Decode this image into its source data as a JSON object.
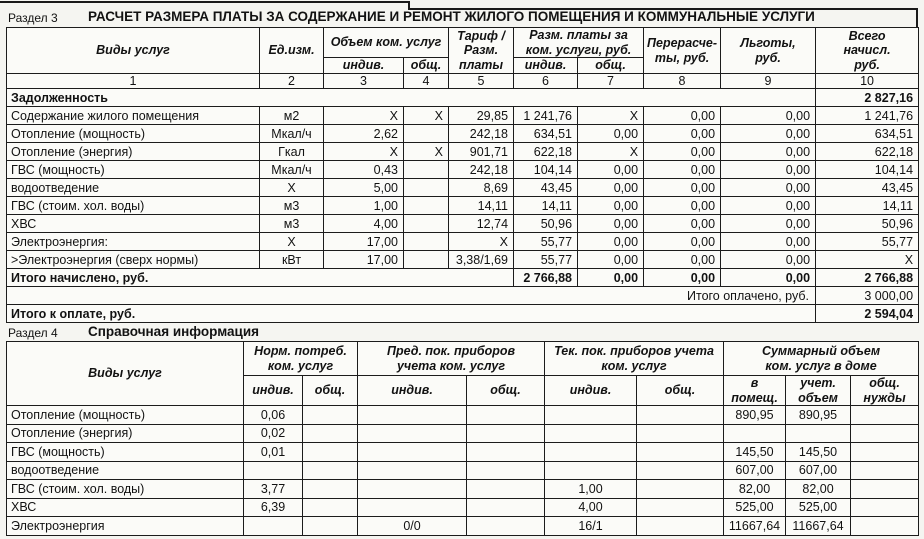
{
  "colors": {
    "ink": "#1a1a1a",
    "paper": "#f5f5f1"
  },
  "section3": {
    "label": "Раздел 3",
    "title": "РАСЧЕТ РАЗМЕРА ПЛАТЫ ЗА СОДЕРЖАНИЕ И РЕМОНТ ЖИЛОГО ПОМЕЩЕНИЯ И КОММУНАЛЬНЫЕ УСЛУГИ",
    "table": {
      "head": [
        [
          {
            "t": "Виды услуг",
            "c": "h",
            "r": 2
          },
          {
            "t": "Ед.изм.",
            "c": "h",
            "r": 2
          },
          {
            "t": "Объем ком. услуг",
            "c": "h",
            "s": 2
          },
          {
            "t": "Тариф /\nРазм.\nплаты",
            "c": "h",
            "r": 2
          },
          {
            "t": "Разм. платы за\nком. услуги, руб.",
            "c": "h",
            "s": 2
          },
          {
            "t": "Перерасче-\nты, руб.",
            "c": "h",
            "r": 2
          },
          {
            "t": "Льготы,\nруб.",
            "c": "h",
            "r": 2
          },
          {
            "t": "Всего\nначисл.\nруб.",
            "c": "h",
            "r": 2
          }
        ],
        [
          {
            "t": "индив.",
            "c": "h"
          },
          {
            "t": "общ.",
            "c": "h"
          },
          {
            "t": "индив.",
            "c": "h"
          },
          {
            "t": "общ.",
            "c": "h"
          }
        ],
        [
          {
            "t": "1",
            "c": "n"
          },
          {
            "t": "2",
            "c": "n"
          },
          {
            "t": "3",
            "c": "n"
          },
          {
            "t": "4",
            "c": "n"
          },
          {
            "t": "5",
            "c": "n"
          },
          {
            "t": "6",
            "c": "n"
          },
          {
            "t": "7",
            "c": "n"
          },
          {
            "t": "8",
            "c": "n"
          },
          {
            "t": "9",
            "c": "n"
          },
          {
            "t": "10",
            "c": "n"
          }
        ]
      ],
      "rows": [
        [
          {
            "t": "Задолженность",
            "c": "l b",
            "s": 9
          },
          {
            "t": "2 827,16",
            "c": "v b"
          }
        ],
        [
          {
            "t": "Содержание жилого помещения",
            "c": "l"
          },
          {
            "t": "м2",
            "c": "n"
          },
          {
            "t": "X",
            "c": "v"
          },
          {
            "t": "X",
            "c": "v"
          },
          {
            "t": "29,85",
            "c": "v"
          },
          {
            "t": "1 241,76",
            "c": "v"
          },
          {
            "t": "X",
            "c": "v"
          },
          {
            "t": "0,00",
            "c": "v"
          },
          {
            "t": "0,00",
            "c": "v"
          },
          {
            "t": "1 241,76",
            "c": "v"
          }
        ],
        [
          {
            "t": "Отопление (мощность)",
            "c": "l"
          },
          {
            "t": "Мкал/ч",
            "c": "n"
          },
          {
            "t": "2,62",
            "c": "v"
          },
          {
            "t": "",
            "c": "v"
          },
          {
            "t": "242,18",
            "c": "v"
          },
          {
            "t": "634,51",
            "c": "v"
          },
          {
            "t": "0,00",
            "c": "v"
          },
          {
            "t": "0,00",
            "c": "v"
          },
          {
            "t": "0,00",
            "c": "v"
          },
          {
            "t": "634,51",
            "c": "v"
          }
        ],
        [
          {
            "t": "Отопление (энергия)",
            "c": "l"
          },
          {
            "t": "Гкал",
            "c": "n"
          },
          {
            "t": "X",
            "c": "v"
          },
          {
            "t": "X",
            "c": "v"
          },
          {
            "t": "901,71",
            "c": "v"
          },
          {
            "t": "622,18",
            "c": "v"
          },
          {
            "t": "X",
            "c": "v"
          },
          {
            "t": "0,00",
            "c": "v"
          },
          {
            "t": "0,00",
            "c": "v"
          },
          {
            "t": "622,18",
            "c": "v"
          }
        ],
        [
          {
            "t": "ГВС (мощность)",
            "c": "l"
          },
          {
            "t": "Мкал/ч",
            "c": "n"
          },
          {
            "t": "0,43",
            "c": "v"
          },
          {
            "t": "",
            "c": "v"
          },
          {
            "t": "242,18",
            "c": "v"
          },
          {
            "t": "104,14",
            "c": "v"
          },
          {
            "t": "0,00",
            "c": "v"
          },
          {
            "t": "0,00",
            "c": "v"
          },
          {
            "t": "0,00",
            "c": "v"
          },
          {
            "t": "104,14",
            "c": "v"
          }
        ],
        [
          {
            "t": "водоотведение",
            "c": "l"
          },
          {
            "t": "X",
            "c": "n"
          },
          {
            "t": "5,00",
            "c": "v"
          },
          {
            "t": "",
            "c": "v"
          },
          {
            "t": "8,69",
            "c": "v"
          },
          {
            "t": "43,45",
            "c": "v"
          },
          {
            "t": "0,00",
            "c": "v"
          },
          {
            "t": "0,00",
            "c": "v"
          },
          {
            "t": "0,00",
            "c": "v"
          },
          {
            "t": "43,45",
            "c": "v"
          }
        ],
        [
          {
            "t": "ГВС (стоим. хол. воды)",
            "c": "l"
          },
          {
            "t": "м3",
            "c": "n"
          },
          {
            "t": "1,00",
            "c": "v"
          },
          {
            "t": "",
            "c": "v"
          },
          {
            "t": "14,11",
            "c": "v"
          },
          {
            "t": "14,11",
            "c": "v"
          },
          {
            "t": "0,00",
            "c": "v"
          },
          {
            "t": "0,00",
            "c": "v"
          },
          {
            "t": "0,00",
            "c": "v"
          },
          {
            "t": "14,11",
            "c": "v"
          }
        ],
        [
          {
            "t": "ХВС",
            "c": "l"
          },
          {
            "t": "м3",
            "c": "n"
          },
          {
            "t": "4,00",
            "c": "v"
          },
          {
            "t": "",
            "c": "v"
          },
          {
            "t": "12,74",
            "c": "v"
          },
          {
            "t": "50,96",
            "c": "v"
          },
          {
            "t": "0,00",
            "c": "v"
          },
          {
            "t": "0,00",
            "c": "v"
          },
          {
            "t": "0,00",
            "c": "v"
          },
          {
            "t": "50,96",
            "c": "v"
          }
        ],
        [
          {
            "t": "Электроэнергия:",
            "c": "l"
          },
          {
            "t": "X",
            "c": "n"
          },
          {
            "t": "17,00",
            "c": "v"
          },
          {
            "t": "",
            "c": "v"
          },
          {
            "t": "X",
            "c": "v"
          },
          {
            "t": "55,77",
            "c": "v"
          },
          {
            "t": "0,00",
            "c": "v"
          },
          {
            "t": "0,00",
            "c": "v"
          },
          {
            "t": "0,00",
            "c": "v"
          },
          {
            "t": "55,77",
            "c": "v"
          }
        ],
        [
          {
            "t": ">Электроэнергия (сверх нормы)",
            "c": "l"
          },
          {
            "t": "кВт",
            "c": "n"
          },
          {
            "t": "17,00",
            "c": "v"
          },
          {
            "t": "",
            "c": "v"
          },
          {
            "t": "3,38/1,69",
            "c": "v"
          },
          {
            "t": "55,77",
            "c": "v"
          },
          {
            "t": "0,00",
            "c": "v"
          },
          {
            "t": "0,00",
            "c": "v"
          },
          {
            "t": "0,00",
            "c": "v"
          },
          {
            "t": "X",
            "c": "v"
          }
        ],
        [
          {
            "t": "Итого начислено, руб.",
            "c": "l b",
            "s": 5
          },
          {
            "t": "2 766,88",
            "c": "v b"
          },
          {
            "t": "0,00",
            "c": "v b"
          },
          {
            "t": "0,00",
            "c": "v b"
          },
          {
            "t": "0,00",
            "c": "v b"
          },
          {
            "t": "2 766,88",
            "c": "v b"
          }
        ],
        [
          {
            "t": "Итого оплачено, руб.",
            "c": "r",
            "s": 9
          },
          {
            "t": "3 000,00",
            "c": "v"
          }
        ],
        [
          {
            "t": "Итого к оплате, руб.",
            "c": "l b",
            "s": 9
          },
          {
            "t": "2 594,04",
            "c": "v b"
          }
        ]
      ]
    }
  },
  "section4": {
    "label": "Раздел 4",
    "title": "Справочная информация",
    "table": {
      "head": [
        [
          {
            "t": "Виды услуг",
            "c": "h",
            "r": 2
          },
          {
            "t": "Норм. потреб.\nком. услуг",
            "c": "h",
            "s": 2
          },
          {
            "t": "Пред. пок. приборов\nучета ком. услуг",
            "c": "h",
            "s": 2
          },
          {
            "t": "Тек. пок. приборов учета\nком. услуг",
            "c": "h",
            "s": 2
          },
          {
            "t": "Суммарный объем\nком. услуг в доме",
            "c": "h",
            "s": 3
          }
        ],
        [
          {
            "t": "индив.",
            "c": "h"
          },
          {
            "t": "общ.",
            "c": "h"
          },
          {
            "t": "индив.",
            "c": "h"
          },
          {
            "t": "общ.",
            "c": "h"
          },
          {
            "t": "индив.",
            "c": "h"
          },
          {
            "t": "общ.",
            "c": "h"
          },
          {
            "t": "в\nпомещ.",
            "c": "h"
          },
          {
            "t": "учет.\nобъем",
            "c": "h"
          },
          {
            "t": "общ.\nнужды",
            "c": "h"
          }
        ]
      ],
      "rows": [
        [
          {
            "t": "Отопление (мощность)",
            "c": "l"
          },
          {
            "t": "0,06",
            "c": "n"
          },
          {
            "t": "",
            "c": "n"
          },
          {
            "t": "",
            "c": "n"
          },
          {
            "t": "",
            "c": "n"
          },
          {
            "t": "",
            "c": "n"
          },
          {
            "t": "",
            "c": "n"
          },
          {
            "t": "890,95",
            "c": "n"
          },
          {
            "t": "890,95",
            "c": "n"
          },
          {
            "t": "",
            "c": "n"
          }
        ],
        [
          {
            "t": "Отопление (энергия)",
            "c": "l"
          },
          {
            "t": "0,02",
            "c": "n"
          },
          {
            "t": "",
            "c": "n"
          },
          {
            "t": "",
            "c": "n"
          },
          {
            "t": "",
            "c": "n"
          },
          {
            "t": "",
            "c": "n"
          },
          {
            "t": "",
            "c": "n"
          },
          {
            "t": "",
            "c": "n"
          },
          {
            "t": "",
            "c": "n"
          },
          {
            "t": "",
            "c": "n"
          }
        ],
        [
          {
            "t": "ГВС (мощность)",
            "c": "l"
          },
          {
            "t": "0,01",
            "c": "n"
          },
          {
            "t": "",
            "c": "n"
          },
          {
            "t": "",
            "c": "n"
          },
          {
            "t": "",
            "c": "n"
          },
          {
            "t": "",
            "c": "n"
          },
          {
            "t": "",
            "c": "n"
          },
          {
            "t": "145,50",
            "c": "n"
          },
          {
            "t": "145,50",
            "c": "n"
          },
          {
            "t": "",
            "c": "n"
          }
        ],
        [
          {
            "t": "водоотведение",
            "c": "l"
          },
          {
            "t": "",
            "c": "n"
          },
          {
            "t": "",
            "c": "n"
          },
          {
            "t": "",
            "c": "n"
          },
          {
            "t": "",
            "c": "n"
          },
          {
            "t": "",
            "c": "n"
          },
          {
            "t": "",
            "c": "n"
          },
          {
            "t": "607,00",
            "c": "n"
          },
          {
            "t": "607,00",
            "c": "n"
          },
          {
            "t": "",
            "c": "n"
          }
        ],
        [
          {
            "t": "ГВС (стоим. хол. воды)",
            "c": "l"
          },
          {
            "t": "3,77",
            "c": "n"
          },
          {
            "t": "",
            "c": "n"
          },
          {
            "t": "",
            "c": "n"
          },
          {
            "t": "",
            "c": "n"
          },
          {
            "t": "1,00",
            "c": "n"
          },
          {
            "t": "",
            "c": "n"
          },
          {
            "t": "82,00",
            "c": "n"
          },
          {
            "t": "82,00",
            "c": "n"
          },
          {
            "t": "",
            "c": "n"
          }
        ],
        [
          {
            "t": "ХВС",
            "c": "l"
          },
          {
            "t": "6,39",
            "c": "n"
          },
          {
            "t": "",
            "c": "n"
          },
          {
            "t": "",
            "c": "n"
          },
          {
            "t": "",
            "c": "n"
          },
          {
            "t": "4,00",
            "c": "n"
          },
          {
            "t": "",
            "c": "n"
          },
          {
            "t": "525,00",
            "c": "n"
          },
          {
            "t": "525,00",
            "c": "n"
          },
          {
            "t": "",
            "c": "n"
          }
        ],
        [
          {
            "t": "Электроэнергия",
            "c": "l"
          },
          {
            "t": "",
            "c": "n"
          },
          {
            "t": "",
            "c": "n"
          },
          {
            "t": "0/0",
            "c": "n"
          },
          {
            "t": "",
            "c": "n"
          },
          {
            "t": "16/1",
            "c": "n"
          },
          {
            "t": "",
            "c": "n"
          },
          {
            "t": "11667,64",
            "c": "n"
          },
          {
            "t": "11667,64",
            "c": "n"
          },
          {
            "t": "",
            "c": "n"
          }
        ]
      ]
    }
  }
}
